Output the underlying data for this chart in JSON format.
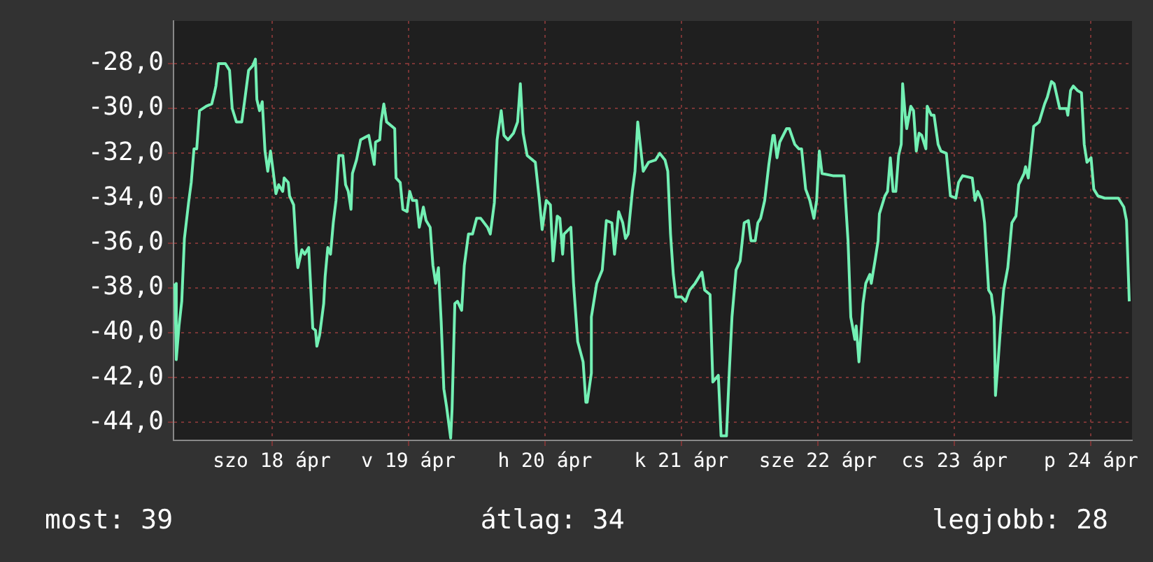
{
  "chart_data": {
    "type": "line",
    "x": [
      "--04-17T06:58",
      "--04-17T07:12",
      "--04-17T07:41",
      "--04-17T08:10",
      "--04-17T08:38",
      "--04-17T09:22",
      "--04-17T09:50",
      "--04-17T10:19",
      "--04-17T10:48",
      "--04-17T11:17",
      "--04-17T12:29",
      "--04-17T13:26",
      "--04-17T13:55",
      "--04-17T14:10",
      "--04-17T14:38",
      "--04-17T15:50",
      "--04-17T16:34",
      "--04-17T17:02",
      "--04-17T17:46",
      "--04-17T18:43",
      "--04-17T19:12",
      "--04-17T19:55",
      "--04-17T20:38",
      "--04-17T21:07",
      "--04-17T21:22",
      "--04-17T21:50",
      "--04-17T22:19",
      "--04-17T22:48",
      "--04-17T23:17",
      "--04-17T23:46",
      "--04-18T00:14",
      "--04-18T00:43",
      "--04-18T01:12",
      "--04-18T01:55",
      "--04-18T02:10",
      "--04-18T02:53",
      "--04-18T03:07",
      "--04-18T03:50",
      "--04-18T04:19",
      "--04-18T04:34",
      "--04-18T05:17",
      "--04-18T05:46",
      "--04-18T06:29",
      "--04-18T07:12",
      "--04-18T07:41",
      "--04-18T07:55",
      "--04-18T08:24",
      "--04-18T09:07",
      "--04-18T09:22",
      "--04-18T09:50",
      "--04-18T10:19",
      "--04-18T10:48",
      "--04-18T11:17",
      "--04-18T11:46",
      "--04-18T12:29",
      "--04-18T12:58",
      "--04-18T13:26",
      "--04-18T13:55",
      "--04-18T14:10",
      "--04-18T14:53",
      "--04-18T15:36",
      "--04-18T16:19",
      "--04-18T17:02",
      "--04-18T18:00",
      "--04-18T18:14",
      "--04-18T18:58",
      "--04-18T19:12",
      "--04-18T19:41",
      "--04-18T20:10",
      "--04-18T21:36",
      "--04-18T21:50",
      "--04-18T22:34",
      "--04-18T23:02",
      "--04-18T23:46",
      "--04-19T00:14",
      "--04-19T00:43",
      "--04-19T01:26",
      "--04-19T01:55",
      "--04-19T02:38",
      "--04-19T03:07",
      "--04-19T03:50",
      "--04-19T04:19",
      "--04-19T04:48",
      "--04-19T05:17",
      "--04-19T05:46",
      "--04-19T06:14",
      "--04-19T06:43",
      "--04-19T07:26",
      "--04-19T07:41",
      "--04-19T08:10",
      "--04-19T08:38",
      "--04-19T09:22",
      "--04-19T09:50",
      "--04-19T10:34",
      "--04-19T11:17",
      "--04-19T12:00",
      "--04-19T12:43",
      "--04-19T13:55",
      "--04-19T14:24",
      "--04-19T15:07",
      "--04-19T15:36",
      "--04-19T16:19",
      "--04-19T16:48",
      "--04-19T17:31",
      "--04-19T18:29",
      "--04-19T19:12",
      "--04-19T19:41",
      "--04-19T20:10",
      "--04-19T20:53",
      "--04-19T22:19",
      "--04-19T23:02",
      "--04-19T23:31",
      "--04-20T00:14",
      "--04-20T00:58",
      "--04-20T01:26",
      "--04-20T02:10",
      "--04-20T02:38",
      "--04-20T03:07",
      "--04-20T03:22",
      "--04-20T04:34",
      "--04-20T05:02",
      "--04-20T05:46",
      "--04-20T06:43",
      "--04-20T07:12",
      "--04-20T07:26",
      "--04-20T08:10",
      "--04-20T08:10",
      "--04-20T09:07",
      "--04-20T10:05",
      "--04-20T10:48",
      "--04-20T11:46",
      "--04-20T12:14",
      "--04-20T12:58",
      "--04-20T13:41",
      "--04-20T14:10",
      "--04-20T14:38",
      "--04-20T15:22",
      "--04-20T15:50",
      "--04-20T16:19",
      "--04-20T16:48",
      "--04-20T17:17",
      "--04-20T18:14",
      "--04-20T19:26",
      "--04-20T20:10",
      "--04-20T21:07",
      "--04-20T21:36",
      "--04-20T22:05",
      "--04-20T22:34",
      "--04-20T23:02",
      "--04-21T00:00",
      "--04-21T00:43",
      "--04-21T01:26",
      "--04-21T02:24",
      "--04-21T03:36",
      "--04-21T04:05",
      "--04-21T05:02",
      "--04-21T05:31",
      "--04-21T06:29",
      "--04-21T06:58",
      "--04-21T07:55",
      "--04-21T08:24",
      "--04-21T08:53",
      "--04-21T09:36",
      "--04-21T10:19",
      "--04-21T11:02",
      "--04-21T11:46",
      "--04-21T12:14",
      "--04-21T12:58",
      "--04-21T13:26",
      "--04-21T13:55",
      "--04-21T14:38",
      "--04-21T15:22",
      "--04-21T16:05",
      "--04-21T16:19",
      "--04-21T16:48",
      "--04-21T17:17",
      "--04-21T18:29",
      "--04-21T18:58",
      "--04-21T19:55",
      "--04-21T20:38",
      "--04-21T21:07",
      "--04-21T21:50",
      "--04-21T22:34",
      "--04-21T23:17",
      "--04-21T23:46",
      "--04-22T00:14",
      "--04-22T00:43",
      "--04-22T02:38",
      "--04-22T04:34",
      "--04-22T05:17",
      "--04-22T05:46",
      "--04-22T06:29",
      "--04-22T06:43",
      "--04-22T07:12",
      "--04-22T07:55",
      "--04-22T08:24",
      "--04-22T09:07",
      "--04-22T09:22",
      "--04-22T10:05",
      "--04-22T10:34",
      "--04-22T10:48",
      "--04-22T11:46",
      "--04-22T12:14",
      "--04-22T12:43",
      "--04-22T13:12",
      "--04-22T13:41",
      "--04-22T14:10",
      "--04-22T14:38",
      "--04-22T14:53",
      "--04-22T15:22",
      "--04-22T15:36",
      "--04-22T16:19",
      "--04-22T16:48",
      "--04-22T17:17",
      "--04-22T17:46",
      "--04-22T18:14",
      "--04-22T18:58",
      "--04-22T19:12",
      "--04-22T19:55",
      "--04-22T20:24",
      "--04-22T21:07",
      "--04-22T21:36",
      "--04-22T22:34",
      "--04-22T23:17",
      "--04-23T00:14",
      "--04-23T00:43",
      "--04-23T01:26",
      "--04-23T03:07",
      "--04-23T03:36",
      "--04-23T04:05",
      "--04-23T04:48",
      "--04-23T05:17",
      "--04-23T06:00",
      "--04-23T06:29",
      "--04-23T06:58",
      "--04-23T07:12",
      "--04-23T07:41",
      "--04-23T08:10",
      "--04-23T08:38",
      "--04-23T09:22",
      "--04-23T10:05",
      "--04-23T10:48",
      "--04-23T11:17",
      "--04-23T12:14",
      "--04-23T12:29",
      "--04-23T12:58",
      "--04-23T13:26",
      "--04-23T13:55",
      "--04-23T14:53",
      "--04-23T15:50",
      "--04-23T16:19",
      "--04-23T17:02",
      "--04-23T17:31",
      "--04-23T18:29",
      "--04-23T19:41",
      "--04-23T19:55",
      "--04-23T20:24",
      "--04-23T20:53",
      "--04-23T21:36",
      "--04-23T22:19",
      "--04-23T22:48",
      "--04-23T23:17",
      "--04-24T00:00",
      "--04-24T00:29",
      "--04-24T01:12",
      "--04-24T02:24",
      "--04-24T04:48",
      "--04-24T05:46",
      "--04-24T06:14",
      "--04-24T06:43"
    ],
    "series": [
      {
        "color": "#73f0b4",
        "values": [
          -37.8,
          -41.2,
          -39.7,
          -38.6,
          -35.8,
          -34.2,
          -33.3,
          -31.8,
          -31.8,
          -30.1,
          -29.9,
          -29.8,
          -29.3,
          -29.0,
          -28.0,
          -28.0,
          -28.3,
          -30.0,
          -30.6,
          -30.6,
          -29.7,
          -28.3,
          -28.1,
          -27.8,
          -29.6,
          -30.1,
          -29.7,
          -31.9,
          -32.8,
          -31.9,
          -32.8,
          -33.8,
          -33.4,
          -33.7,
          -33.1,
          -33.3,
          -33.9,
          -34.3,
          -36.4,
          -37.1,
          -36.3,
          -36.5,
          -36.2,
          -39.8,
          -39.9,
          -40.6,
          -40.1,
          -38.7,
          -37.5,
          -36.2,
          -36.5,
          -35.1,
          -34.1,
          -32.1,
          -32.1,
          -33.4,
          -33.7,
          -34.5,
          -32.9,
          -32.3,
          -31.4,
          -31.3,
          -31.2,
          -32.5,
          -31.5,
          -31.4,
          -30.6,
          -29.8,
          -30.6,
          -30.9,
          -33.1,
          -33.3,
          -34.5,
          -34.6,
          -33.7,
          -34.1,
          -34.1,
          -35.3,
          -34.4,
          -35.0,
          -35.3,
          -37.0,
          -37.8,
          -37.1,
          -39.5,
          -42.5,
          -43.3,
          -44.7,
          -43.4,
          -38.7,
          -38.6,
          -39.0,
          -37.0,
          -35.6,
          -35.6,
          -34.9,
          -34.9,
          -35.3,
          -35.6,
          -34.2,
          -31.4,
          -30.1,
          -31.2,
          -31.4,
          -31.1,
          -30.6,
          -28.9,
          -31.1,
          -32.1,
          -32.4,
          -34.1,
          -35.4,
          -34.1,
          -34.3,
          -36.8,
          -34.8,
          -34.9,
          -36.5,
          -35.6,
          -35.3,
          -37.8,
          -40.4,
          -41.3,
          -43.1,
          -43.1,
          -41.8,
          -39.3,
          -37.8,
          -37.2,
          -35.0,
          -35.1,
          -36.5,
          -34.6,
          -35.1,
          -35.8,
          -35.6,
          -33.7,
          -32.8,
          -30.6,
          -31.7,
          -32.8,
          -32.4,
          -32.3,
          -32.0,
          -32.3,
          -32.8,
          -35.6,
          -37.4,
          -38.4,
          -38.4,
          -38.6,
          -38.1,
          -37.8,
          -37.3,
          -38.1,
          -38.3,
          -42.2,
          -41.9,
          -44.6,
          -44.6,
          -41.8,
          -39.3,
          -37.2,
          -36.8,
          -35.1,
          -35.0,
          -35.9,
          -35.9,
          -35.1,
          -34.9,
          -34.1,
          -32.5,
          -31.2,
          -31.2,
          -32.2,
          -31.5,
          -30.9,
          -30.9,
          -31.6,
          -31.8,
          -31.8,
          -33.6,
          -34.1,
          -34.9,
          -34.1,
          -31.9,
          -32.9,
          -33.0,
          -33.0,
          -35.9,
          -39.3,
          -40.3,
          -39.7,
          -41.3,
          -38.7,
          -37.8,
          -37.4,
          -37.8,
          -36.7,
          -35.9,
          -34.7,
          -33.9,
          -33.7,
          -32.2,
          -33.7,
          -33.7,
          -32.1,
          -31.6,
          -28.9,
          -30.4,
          -30.9,
          -29.9,
          -30.1,
          -31.9,
          -31.1,
          -31.2,
          -31.8,
          -29.9,
          -30.3,
          -30.3,
          -31.6,
          -31.9,
          -32.0,
          -33.9,
          -34.0,
          -33.3,
          -33.0,
          -33.1,
          -34.1,
          -33.7,
          -34.1,
          -35.1,
          -38.1,
          -38.3,
          -39.3,
          -42.8,
          -41.2,
          -39.5,
          -38.1,
          -37.1,
          -35.1,
          -34.8,
          -33.4,
          -32.9,
          -32.6,
          -33.1,
          -32.0,
          -30.8,
          -30.6,
          -29.8,
          -29.5,
          -28.8,
          -28.9,
          -30.0,
          -30.0,
          -30.3,
          -29.2,
          -29.0,
          -29.2,
          -29.3,
          -31.6,
          -32.4,
          -32.2,
          -33.6,
          -33.9,
          -34.0,
          -34.0,
          -34.4,
          -35.0,
          -38.6
        ]
      }
    ],
    "xlim": [
      "--04-17T06:43",
      "--04-24T07:12"
    ],
    "xticks": [
      {
        "value": "--04-18",
        "label": "szo 18 ápr"
      },
      {
        "value": "--04-19",
        "label": "v 19 ápr"
      },
      {
        "value": "--04-20",
        "label": "h 20 ápr"
      },
      {
        "value": "--04-21",
        "label": "k 21 ápr"
      },
      {
        "value": "--04-22",
        "label": "sze 22 ápr"
      },
      {
        "value": "--04-23",
        "label": "cs 23 ápr"
      },
      {
        "value": "--04-24",
        "label": "p 24 ápr"
      }
    ],
    "ylim": [
      -44.8,
      -26.1
    ],
    "yticks": [
      {
        "value": -44,
        "label": "-44,0"
      },
      {
        "value": -42,
        "label": "-42,0"
      },
      {
        "value": -40,
        "label": "-40,0"
      },
      {
        "value": -38,
        "label": "-38,0"
      },
      {
        "value": -36,
        "label": "-36,0"
      },
      {
        "value": -34,
        "label": "-34,0"
      },
      {
        "value": -32,
        "label": "-32,0"
      },
      {
        "value": -30,
        "label": "-30,0"
      },
      {
        "value": -28,
        "label": "-28,0"
      }
    ],
    "grid": true,
    "legend": false,
    "marker": "none",
    "line_style": "solid",
    "annotations": [
      "most: 39",
      "átlag: 34",
      "legjobb: 28"
    ]
  }
}
